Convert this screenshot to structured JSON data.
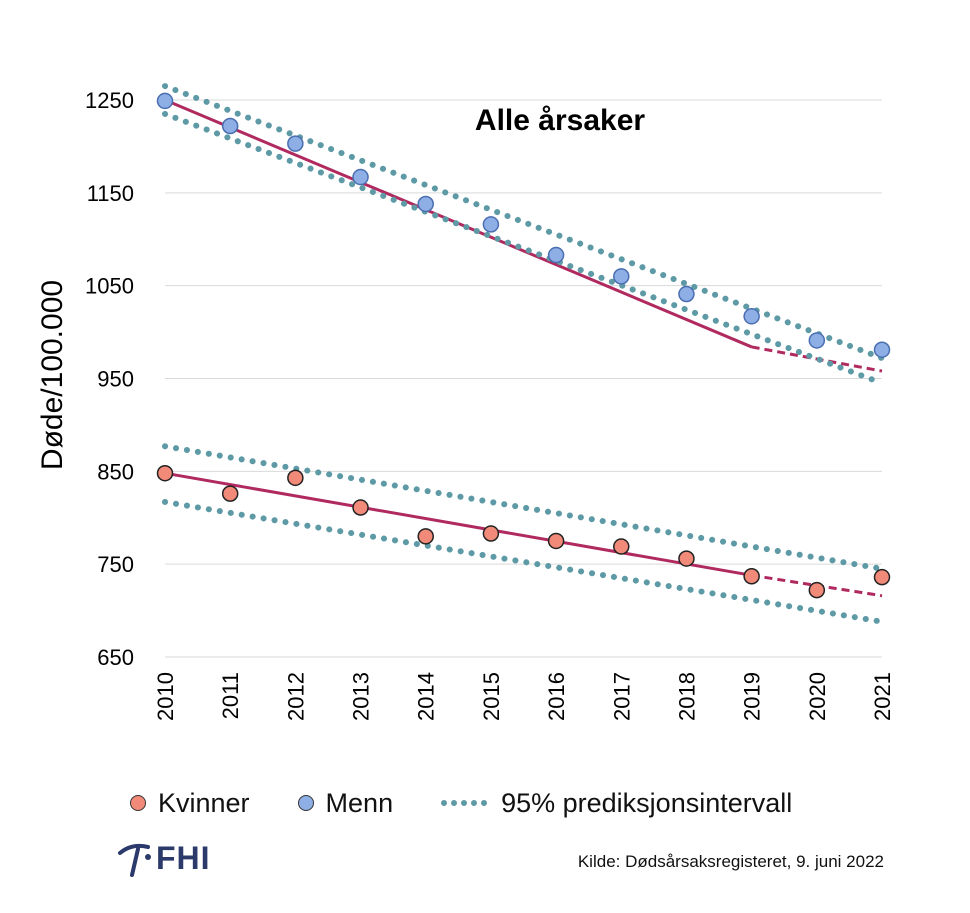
{
  "chart_data": {
    "type": "scatter",
    "title": "Alle årsaker",
    "ylabel": "Døde/100.000",
    "xlabel": "",
    "categories": [
      "2010",
      "2011",
      "2012",
      "2013",
      "2014",
      "2015",
      "2016",
      "2017",
      "2018",
      "2019",
      "2020",
      "2021"
    ],
    "ylim": [
      650,
      1250
    ],
    "yticks": [
      650,
      750,
      850,
      950,
      1050,
      1150,
      1250
    ],
    "grid": true,
    "legend_position": "bottom",
    "series": [
      {
        "name": "Kvinner",
        "type": "scatter",
        "color": "#f28a7a",
        "values": [
          848,
          826,
          843,
          811,
          780,
          783,
          775,
          769,
          756,
          737,
          722,
          736
        ]
      },
      {
        "name": "Menn",
        "type": "scatter",
        "color": "#8eaee6",
        "values": [
          1249,
          1222,
          1203,
          1167,
          1138,
          1116,
          1083,
          1060,
          1041,
          1017,
          991,
          981
        ]
      }
    ],
    "trends": [
      {
        "group": "Menn",
        "kind": "fit",
        "color": "#b02a5f",
        "fit_end": "2019",
        "values_start": 1250,
        "values_fit_end": 984,
        "values_end": 958
      },
      {
        "group": "Menn",
        "kind": "pi-upper",
        "color": "#5e9aa6",
        "values_start": 1265,
        "values_end": 972
      },
      {
        "group": "Menn",
        "kind": "pi-lower",
        "color": "#5e9aa6",
        "values_start": 1235,
        "values_end": 945
      },
      {
        "group": "Kvinner",
        "kind": "fit",
        "color": "#b02a5f",
        "fit_end": "2019",
        "values_start": 848,
        "values_fit_end": 738,
        "values_end": 716
      },
      {
        "group": "Kvinner",
        "kind": "pi-upper",
        "color": "#5e9aa6",
        "values_start": 877,
        "values_end": 745
      },
      {
        "group": "Kvinner",
        "kind": "pi-lower",
        "color": "#5e9aa6",
        "values_start": 817,
        "values_end": 688
      }
    ],
    "legend": [
      "Kvinner",
      "Menn",
      "95% prediksjonsintervall"
    ]
  },
  "legend": {
    "kvinner": "Kvinner",
    "menn": "Menn",
    "interval": "95% prediksjonsintervall"
  },
  "logo": {
    "text": "FHI",
    "icon": "fhi-logo-icon"
  },
  "source": "Kilde: Dødsårsaksregisteret, 9. juni 2022",
  "colors": {
    "kvinner": "#f28a7a",
    "menn": "#8eaee6",
    "trend": "#b02a5f",
    "interval": "#5e9aa6",
    "grid": "#d9d9d9"
  }
}
